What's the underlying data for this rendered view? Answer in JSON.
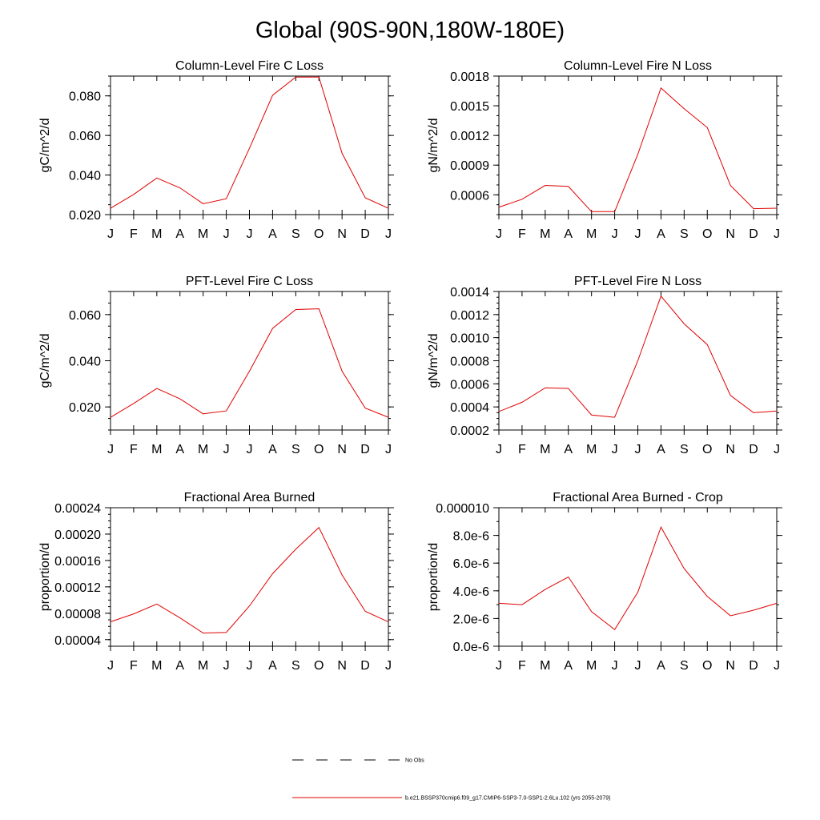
{
  "page": {
    "title": "Global (90S-90N,180W-180E)"
  },
  "legend": {
    "entries": [
      {
        "label": "No Obs",
        "style": "dashed",
        "color": "#000000"
      },
      {
        "label": "b.e21.BSSP370cmip6.f09_g17.CMIP6-SSP3-7.0-SSP1-2.6Lu.102 (yrs 2055-2079)",
        "style": "solid",
        "color": "#e00000"
      }
    ]
  },
  "series_color": "#e00000",
  "chart_data": [
    {
      "type": "line",
      "title": "Column-Level Fire C Loss",
      "ylabel": "gC/m^2/d",
      "xlabel": "",
      "categories": [
        "J",
        "F",
        "M",
        "A",
        "M",
        "J",
        "J",
        "A",
        "S",
        "O",
        "N",
        "D",
        "J"
      ],
      "values": [
        0.0232,
        0.0302,
        0.0385,
        0.0335,
        0.0255,
        0.028,
        0.0535,
        0.0803,
        0.0895,
        0.0895,
        0.051,
        0.0285,
        0.0232
      ],
      "ylim": [
        0.02,
        0.09
      ],
      "yticks": [
        0.02,
        0.04,
        0.06,
        0.08
      ],
      "ytick_labels": [
        "0.020",
        "0.040",
        "0.060",
        "0.080"
      ],
      "yminor_step": 0.005
    },
    {
      "type": "line",
      "title": "Column-Level Fire N Loss",
      "ylabel": "gN/m^2/d",
      "xlabel": "",
      "categories": [
        "J",
        "F",
        "M",
        "A",
        "M",
        "J",
        "J",
        "A",
        "S",
        "O",
        "N",
        "D",
        "J"
      ],
      "values": [
        0.000475,
        0.000555,
        0.000695,
        0.000685,
        0.00043,
        0.00043,
        0.00101,
        0.00168,
        0.00147,
        0.00128,
        0.000695,
        0.00046,
        0.000465
      ],
      "ylim": [
        0.0004,
        0.0018
      ],
      "yticks": [
        0.0006,
        0.0009,
        0.0012,
        0.0015,
        0.0018
      ],
      "ytick_labels": [
        "0.0006",
        "0.0009",
        "0.0012",
        "0.0015",
        "0.0018"
      ],
      "yminor_step": 0.0001
    },
    {
      "type": "line",
      "title": "PFT-Level Fire C Loss",
      "ylabel": "gC/m^2/d",
      "xlabel": "",
      "categories": [
        "J",
        "F",
        "M",
        "A",
        "M",
        "J",
        "J",
        "A",
        "S",
        "O",
        "N",
        "D",
        "J"
      ],
      "values": [
        0.0155,
        0.0215,
        0.028,
        0.0235,
        0.017,
        0.0183,
        0.0355,
        0.054,
        0.0622,
        0.0625,
        0.0355,
        0.0195,
        0.0155
      ],
      "ylim": [
        0.01,
        0.07
      ],
      "yticks": [
        0.02,
        0.04,
        0.06
      ],
      "ytick_labels": [
        "0.020",
        "0.040",
        "0.060"
      ],
      "yminor_step": 0.005
    },
    {
      "type": "line",
      "title": "PFT-Level Fire N Loss",
      "ylabel": "gN/m^2/d",
      "xlabel": "",
      "categories": [
        "J",
        "F",
        "M",
        "A",
        "M",
        "J",
        "J",
        "A",
        "S",
        "O",
        "N",
        "D",
        "J"
      ],
      "values": [
        0.00036,
        0.00044,
        0.000565,
        0.00056,
        0.00033,
        0.00031,
        0.0008,
        0.00136,
        0.00112,
        0.00094,
        0.0005,
        0.00035,
        0.000365
      ],
      "ylim": [
        0.0002,
        0.0014
      ],
      "yticks": [
        0.0002,
        0.0004,
        0.0006,
        0.0008,
        0.001,
        0.0012,
        0.0014
      ],
      "ytick_labels": [
        "0.0002",
        "0.0004",
        "0.0006",
        "0.0008",
        "0.0010",
        "0.0012",
        "0.0014"
      ],
      "yminor_step": 5e-05
    },
    {
      "type": "line",
      "title": "Fractional Area Burned",
      "ylabel": "proportion/d",
      "xlabel": "",
      "categories": [
        "J",
        "F",
        "M",
        "A",
        "M",
        "J",
        "J",
        "A",
        "S",
        "O",
        "N",
        "D",
        "J"
      ],
      "values": [
        6.7e-05,
        7.9e-05,
        9.4e-05,
        7.3e-05,
        5e-05,
        5.1e-05,
        9.1e-05,
        0.00014,
        0.000177,
        0.00021,
        0.000138,
        8.3e-05,
        6.7e-05
      ],
      "ylim": [
        3e-05,
        0.00024
      ],
      "yticks": [
        4e-05,
        8e-05,
        0.00012,
        0.00016,
        0.0002,
        0.00024
      ],
      "ytick_labels": [
        "0.00004",
        "0.00008",
        "0.00012",
        "0.00016",
        "0.00020",
        "0.00024"
      ],
      "yminor_step": 1e-05
    },
    {
      "type": "line",
      "title": "Fractional Area Burned - Crop",
      "ylabel": "proportion/d",
      "xlabel": "",
      "categories": [
        "J",
        "F",
        "M",
        "A",
        "M",
        "J",
        "J",
        "A",
        "S",
        "O",
        "N",
        "D",
        "J"
      ],
      "values": [
        3.1e-06,
        3e-06,
        4.1e-06,
        5e-06,
        2.5e-06,
        1.2e-06,
        3.9e-06,
        8.6e-06,
        5.6e-06,
        3.6e-06,
        2.2e-06,
        2.6e-06,
        3.1e-06
      ],
      "ylim": [
        0,
        1e-05
      ],
      "yticks": [
        0,
        2e-06,
        4e-06,
        6e-06,
        8e-06,
        1e-05
      ],
      "ytick_labels": [
        "0.0e-6",
        "2.0e-6",
        "4.0e-6",
        "6.0e-6",
        "8.0e-6",
        "0.000010"
      ],
      "yminor_step": 1e-06
    }
  ]
}
